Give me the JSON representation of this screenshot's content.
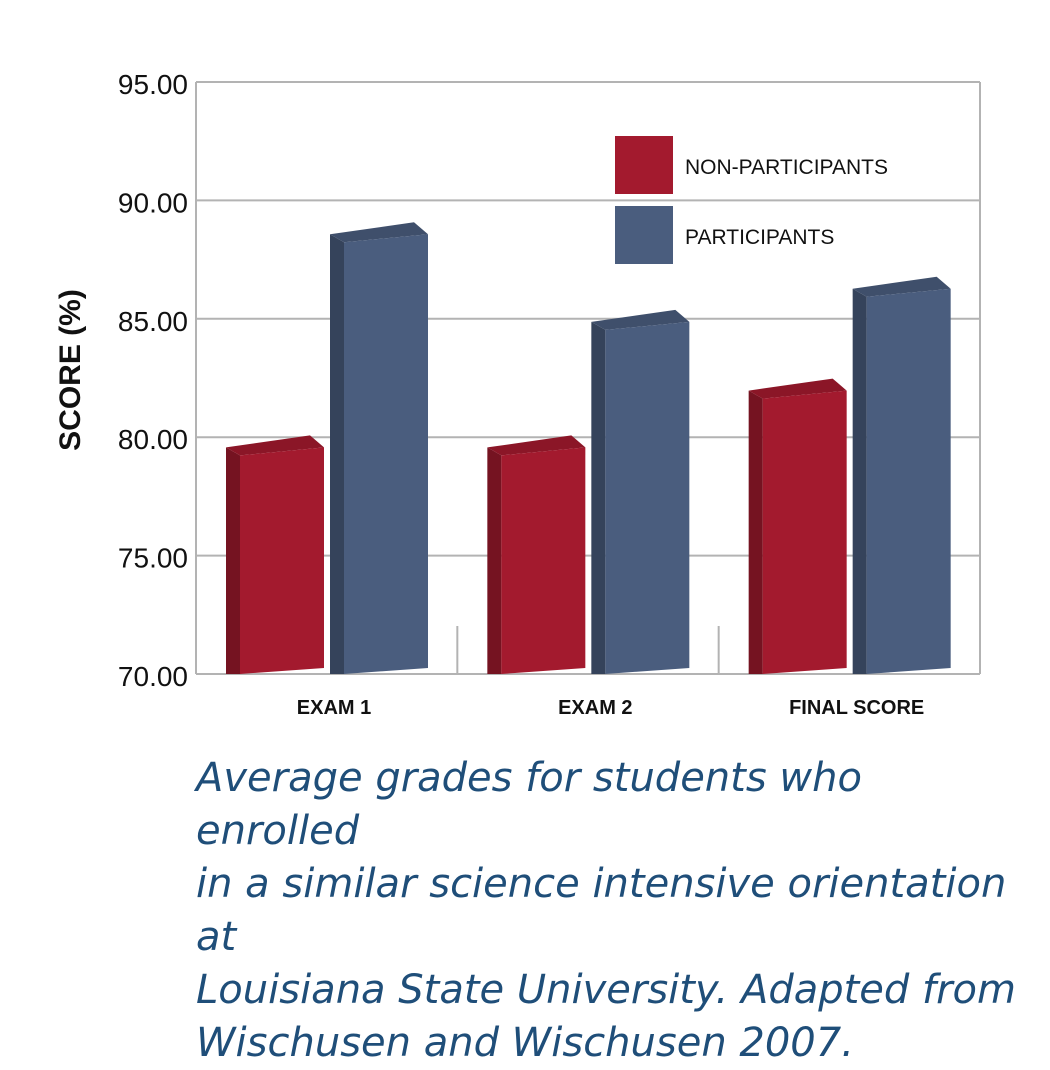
{
  "chart_data": {
    "type": "bar",
    "categories": [
      "EXAM 1",
      "EXAM 2",
      "FINAL SCORE"
    ],
    "series": [
      {
        "name": "NON-PARTICIPANTS",
        "values": [
          79.4,
          79.4,
          81.8
        ],
        "color": "#a31a2e"
      },
      {
        "name": "PARTICIPANTS",
        "values": [
          88.4,
          84.7,
          86.1
        ],
        "color": "#4a5d7e"
      }
    ],
    "ylabel": "SCORE (%)",
    "ylim": [
      70,
      95
    ],
    "yticks": [
      "70.00",
      "75.00",
      "80.00",
      "85.00",
      "90.00",
      "95.00"
    ],
    "grid": true,
    "legend_position": "top-right"
  },
  "caption": "Average grades for students who enrolled\nin a similar science intensive orientation at\nLouisiana State University.  Adapted from\nWischusen and Wischusen 2007."
}
